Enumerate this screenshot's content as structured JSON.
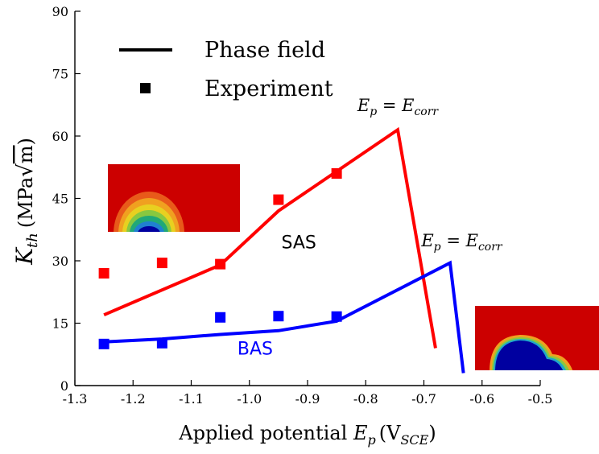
{
  "chart_data": {
    "type": "line",
    "xlabel": "Applied potential",
    "xlabel_symbol": "E",
    "xlabel_subscript": "p",
    "xlabel_unit_open": "(V",
    "xlabel_unit_subscript": "SCE",
    "xlabel_unit_close": ")",
    "ylabel_symbol": "K",
    "ylabel_subscript": "th",
    "ylabel_unit_open": "(MPa",
    "ylabel_unit_sqrt": "√",
    "ylabel_unit_rad": "m",
    "ylabel_unit_close": ")",
    "xlim": [
      -1.3,
      -0.5
    ],
    "ylim": [
      0,
      90
    ],
    "xticks": [
      "-1.3",
      "-1.2",
      "-1.1",
      "-1.0",
      "-0.9",
      "-0.8",
      "-0.7",
      "-0.6",
      "-0.5"
    ],
    "xtick_values": [
      -1.3,
      -1.2,
      -1.1,
      -1.0,
      -0.9,
      -0.8,
      -0.7,
      -0.6,
      -0.5
    ],
    "yticks": [
      "0",
      "15",
      "30",
      "45",
      "60",
      "75",
      "90"
    ],
    "ytick_values": [
      0,
      15,
      30,
      45,
      60,
      75,
      90
    ],
    "legend": {
      "placement": "top-left",
      "entries": [
        {
          "label": "Phase field",
          "marker": "line"
        },
        {
          "label": "Experiment",
          "marker": "square"
        }
      ]
    },
    "series": [
      {
        "name": "SAS",
        "color": "#ff0000",
        "phase_field": {
          "x": [
            -1.25,
            -1.05,
            -0.95,
            -0.745,
            -0.68
          ],
          "y": [
            17,
            29,
            42,
            61.5,
            9
          ]
        },
        "experiment": {
          "x": [
            -1.25,
            -1.15,
            -1.05,
            -0.95,
            -0.85
          ],
          "y": [
            27,
            29.5,
            29.2,
            44.7,
            51
          ]
        }
      },
      {
        "name": "BAS",
        "color": "#0000ff",
        "phase_field": {
          "x": [
            -1.25,
            -1.15,
            -1.05,
            -0.95,
            -0.85,
            -0.655,
            -0.632
          ],
          "y": [
            10.5,
            11.2,
            12.3,
            13.2,
            15.5,
            29.5,
            3
          ]
        },
        "experiment": {
          "x": [
            -1.25,
            -1.15,
            -1.05,
            -0.95,
            -0.85
          ],
          "y": [
            10,
            10.2,
            16.4,
            16.7,
            16.6
          ]
        }
      }
    ],
    "annotations": [
      {
        "lhs_symbol": "E",
        "lhs_sub": "p",
        "eq": "=",
        "rhs_symbol": "E",
        "rhs_sub": "corr",
        "x": -0.745,
        "y": 66
      },
      {
        "lhs_symbol": "E",
        "lhs_sub": "p",
        "eq": "=",
        "rhs_symbol": "E",
        "rhs_sub": "corr",
        "x": -0.635,
        "y": 33.5
      }
    ],
    "insets": [
      {
        "name": "sas-contour",
        "colors": [
          "#cc0000",
          "#e85a1a",
          "#f0a020",
          "#e8d020",
          "#88c840",
          "#20a878",
          "#2080d0",
          "#0000a0"
        ]
      },
      {
        "name": "bas-contour",
        "colors": [
          "#cc0000",
          "#f0a020",
          "#88c840",
          "#20a8c8",
          "#0000a0"
        ]
      }
    ]
  }
}
